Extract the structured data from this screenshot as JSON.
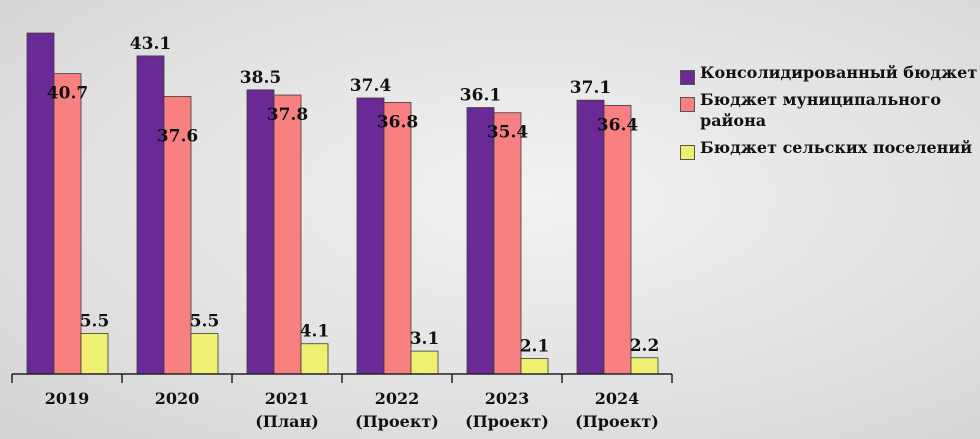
{
  "chart_data": {
    "type": "bar",
    "categories": [
      [
        "2019"
      ],
      [
        "2020"
      ],
      [
        "2021",
        "(План)"
      ],
      [
        "2022",
        "(Проект)"
      ],
      [
        "2023",
        "(Проект)"
      ],
      [
        "2024",
        "(Проект)"
      ]
    ],
    "series": [
      {
        "name": "Консолидированный бюджет",
        "color": "#6a2a96",
        "values": [
          46.2,
          43.1,
          38.5,
          37.4,
          36.1,
          37.1
        ],
        "labels": [
          null,
          "43.1",
          "38.5",
          "37.4",
          "36.1",
          "37.1"
        ]
      },
      {
        "name": "Бюджет муниципального района",
        "color": "#f88080",
        "values": [
          40.7,
          37.6,
          37.8,
          36.8,
          35.4,
          36.4
        ],
        "labels": [
          "40.7",
          "37.6",
          "37.8",
          "36.8",
          "35.4",
          "36.4"
        ]
      },
      {
        "name": "Бюджет сельских поселений",
        "color": "#efef72",
        "values": [
          5.5,
          5.5,
          4.1,
          3.1,
          2.1,
          2.2
        ],
        "labels": [
          "5.5",
          "5.5",
          "4.1",
          "3.1",
          "2.1",
          "2.2"
        ]
      }
    ],
    "xlabel": "",
    "ylabel": "",
    "ylim": [
      0,
      46
    ],
    "grid": false,
    "legend_position": "right"
  }
}
